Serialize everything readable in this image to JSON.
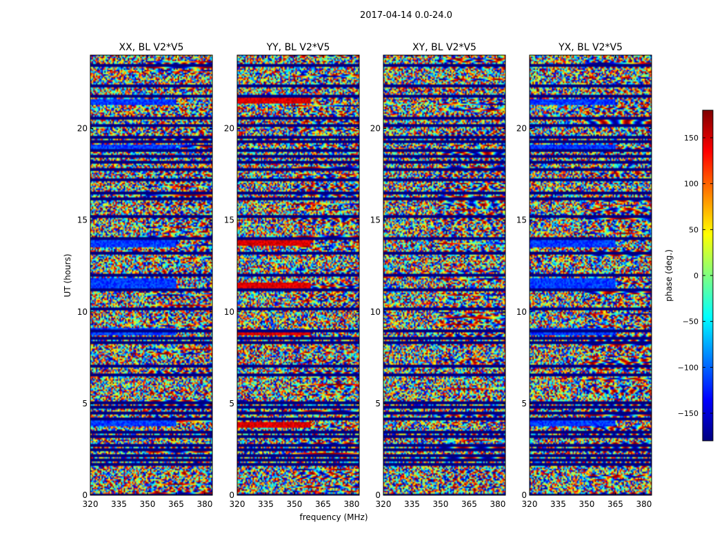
{
  "suptitle": "2017-04-14 0.0-24.0",
  "chart_data": {
    "type": "heatmap",
    "panels": [
      {
        "title": "XX, BL V2*V5"
      },
      {
        "title": "YY, BL V2*V5"
      },
      {
        "title": "XY, BL V2*V5"
      },
      {
        "title": "YX, BL V2*V5"
      }
    ],
    "xlabel": "frequency (MHz)",
    "ylabel": "UT (hours)",
    "xlim": [
      320,
      384
    ],
    "ylim": [
      0,
      24
    ],
    "xticks": [
      "320",
      "335",
      "350",
      "365",
      "380"
    ],
    "xtick_values": [
      320,
      335,
      350,
      365,
      380
    ],
    "yticks": [
      "0",
      "5",
      "10",
      "15",
      "20"
    ],
    "ytick_values": [
      0,
      5,
      10,
      15,
      20
    ],
    "colorbar": {
      "label": "phase (deg.)",
      "range": [
        -180,
        180
      ],
      "ticks": [
        "−150",
        "−100",
        "−50",
        "0",
        "50",
        "100",
        "150"
      ],
      "tick_values": [
        -150,
        -100,
        -50,
        0,
        50,
        100,
        150
      ],
      "colormap": "jet"
    },
    "features": {
      "flag_rows_hours": [
        0.02,
        1.65,
        1.95,
        2.2,
        2.45,
        2.75,
        3.2,
        3.45,
        4.2,
        4.5,
        4.8,
        5.05,
        6.6,
        7.05,
        8.3,
        8.55,
        8.95,
        10.15,
        11.2,
        12.0,
        13.2,
        14.0,
        15.2,
        16.2,
        16.5,
        17.2,
        17.75,
        18.15,
        18.45,
        18.8,
        19.25,
        19.55,
        20.2,
        20.55,
        21.75,
        22.3,
        23.45
      ],
      "blue_band_hours_xx": [
        [
          3.8,
          4.1
        ],
        [
          8.75,
          9.1
        ],
        [
          11.3,
          11.8
        ],
        [
          13.5,
          14.0
        ],
        [
          18.8,
          19.1
        ],
        [
          21.3,
          21.6
        ]
      ],
      "red_band_hours_yy": [
        [
          3.7,
          4.0
        ],
        [
          8.75,
          9.05
        ],
        [
          11.1,
          11.6
        ],
        [
          13.6,
          14.0
        ],
        [
          21.4,
          21.7
        ]
      ]
    }
  }
}
